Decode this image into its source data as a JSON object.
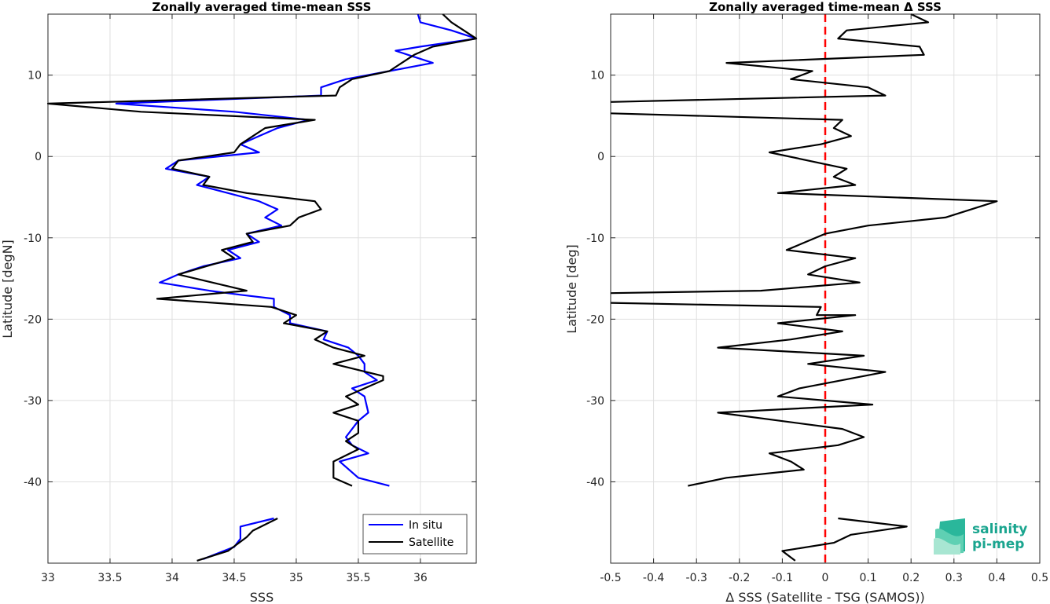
{
  "chart_data": [
    {
      "type": "line",
      "title": "Zonally averaged time-mean SSS",
      "xlabel": "SSS",
      "ylabel": "Latitude [degN]",
      "xlim": [
        33,
        36.45
      ],
      "ylim": [
        -50,
        17.5
      ],
      "xticks": [
        "33",
        "33.5",
        "34",
        "34.5",
        "35",
        "35.5",
        "36"
      ],
      "yticks": [
        "10",
        "0",
        "-10",
        "-20",
        "-30",
        "-40"
      ],
      "grid": true,
      "legend_position": "bottom-right",
      "series": [
        {
          "name": "In situ",
          "color": "#0000ff",
          "segments": [
            [
              [
                35.98,
                17.5
              ],
              [
                36.0,
                16.5
              ],
              [
                36.25,
                15.5
              ],
              [
                36.45,
                14.5
              ],
              [
                36.0,
                13.5
              ],
              [
                35.8,
                13.0
              ],
              [
                35.9,
                12.5
              ],
              [
                36.1,
                11.5
              ],
              [
                35.75,
                10.5
              ],
              [
                35.4,
                9.5
              ],
              [
                35.2,
                8.5
              ],
              [
                35.2,
                7.5
              ],
              [
                33.55,
                6.5
              ],
              [
                34.5,
                5.5
              ],
              [
                35.1,
                4.5
              ],
              [
                34.85,
                3.5
              ],
              [
                34.7,
                2.5
              ],
              [
                34.55,
                1.5
              ],
              [
                34.7,
                0.5
              ],
              [
                34.05,
                -0.5
              ],
              [
                33.95,
                -1.5
              ],
              [
                34.3,
                -2.5
              ],
              [
                34.2,
                -3.5
              ],
              [
                34.45,
                -4.5
              ],
              [
                34.7,
                -5.5
              ],
              [
                34.85,
                -6.5
              ],
              [
                34.75,
                -7.5
              ],
              [
                34.88,
                -8.5
              ],
              [
                34.6,
                -9.5
              ],
              [
                34.7,
                -10.5
              ],
              [
                34.45,
                -11.5
              ],
              [
                34.55,
                -12.5
              ],
              [
                34.25,
                -13.5
              ],
              [
                34.05,
                -14.5
              ],
              [
                33.9,
                -15.5
              ],
              [
                34.3,
                -16.5
              ],
              [
                34.55,
                -17.0
              ],
              [
                34.82,
                -17.5
              ],
              [
                34.82,
                -18.5
              ],
              [
                34.95,
                -19.5
              ],
              [
                34.95,
                -20.5
              ],
              [
                35.25,
                -21.5
              ],
              [
                35.22,
                -22.5
              ],
              [
                35.42,
                -23.5
              ],
              [
                35.5,
                -24.5
              ],
              [
                35.55,
                -25.5
              ],
              [
                35.55,
                -26.5
              ],
              [
                35.65,
                -27.5
              ],
              [
                35.45,
                -28.5
              ],
              [
                35.55,
                -29.5
              ],
              [
                35.58,
                -31.5
              ],
              [
                35.5,
                -32.5
              ],
              [
                35.4,
                -34.5
              ],
              [
                35.45,
                -35.5
              ],
              [
                35.58,
                -36.5
              ],
              [
                35.35,
                -37.5
              ],
              [
                35.5,
                -39.5
              ],
              [
                35.75,
                -40.5
              ]
            ],
            [
              [
                34.82,
                -44.5
              ],
              [
                34.55,
                -45.5
              ],
              [
                34.55,
                -47.0
              ],
              [
                34.5,
                -48.0
              ],
              [
                34.25,
                -49.5
              ]
            ]
          ]
        },
        {
          "name": "Satellite",
          "color": "#000000",
          "segments": [
            [
              [
                36.18,
                17.5
              ],
              [
                36.25,
                16.5
              ],
              [
                36.45,
                14.5
              ],
              [
                36.1,
                13.5
              ],
              [
                35.95,
                12.5
              ],
              [
                35.75,
                10.5
              ],
              [
                35.45,
                9.5
              ],
              [
                35.35,
                8.5
              ],
              [
                35.32,
                7.5
              ],
              [
                33.0,
                6.5
              ],
              [
                33.75,
                5.5
              ],
              [
                35.15,
                4.5
              ],
              [
                34.75,
                3.5
              ],
              [
                34.65,
                2.5
              ],
              [
                34.55,
                1.5
              ],
              [
                34.5,
                0.5
              ],
              [
                34.05,
                -0.5
              ],
              [
                34.0,
                -1.5
              ],
              [
                34.3,
                -2.5
              ],
              [
                34.25,
                -3.5
              ],
              [
                34.6,
                -4.5
              ],
              [
                35.15,
                -5.5
              ],
              [
                35.2,
                -6.5
              ],
              [
                35.02,
                -7.5
              ],
              [
                34.95,
                -8.5
              ],
              [
                34.6,
                -9.5
              ],
              [
                34.65,
                -10.5
              ],
              [
                34.4,
                -11.5
              ],
              [
                34.5,
                -12.5
              ],
              [
                34.05,
                -14.5
              ],
              [
                34.6,
                -16.5
              ],
              [
                33.88,
                -17.5
              ],
              [
                34.8,
                -18.5
              ],
              [
                35.0,
                -19.5
              ],
              [
                34.9,
                -20.5
              ],
              [
                35.25,
                -21.5
              ],
              [
                35.15,
                -22.5
              ],
              [
                35.3,
                -23.5
              ],
              [
                35.55,
                -24.5
              ],
              [
                35.3,
                -25.5
              ],
              [
                35.7,
                -27.0
              ],
              [
                35.7,
                -27.5
              ],
              [
                35.4,
                -29.5
              ],
              [
                35.5,
                -30.5
              ],
              [
                35.3,
                -31.5
              ],
              [
                35.5,
                -32.5
              ],
              [
                35.5,
                -34.0
              ],
              [
                35.4,
                -35.0
              ],
              [
                35.5,
                -36.0
              ],
              [
                35.3,
                -37.5
              ],
              [
                35.3,
                -39.5
              ],
              [
                35.45,
                -40.5
              ]
            ],
            [
              [
                34.85,
                -44.5
              ],
              [
                34.65,
                -46.0
              ],
              [
                34.6,
                -46.8
              ],
              [
                34.45,
                -48.5
              ],
              [
                34.2,
                -49.7
              ]
            ]
          ]
        }
      ]
    },
    {
      "type": "line",
      "title": "Zonally averaged time-mean Δ SSS",
      "xlabel": "Δ SSS (Satellite - TSG (SAMOS))",
      "ylabel": "Latitude [deg]",
      "xlim": [
        -0.5,
        0.5
      ],
      "ylim": [
        -50,
        17.5
      ],
      "xticks": [
        "-0.5",
        "-0.4",
        "-0.3",
        "-0.2",
        "-0.1",
        "0",
        "0.1",
        "0.2",
        "0.3",
        "0.4",
        "0.5"
      ],
      "yticks": [
        "10",
        "0",
        "-10",
        "-20",
        "-30",
        "-40"
      ],
      "grid": true,
      "reference_line": {
        "x": 0,
        "color": "#ff0000",
        "style": "dashed"
      },
      "series": [
        {
          "color": "#000000",
          "segments": [
            [
              [
                0.2,
                17.5
              ],
              [
                0.24,
                16.5
              ],
              [
                0.05,
                15.5
              ],
              [
                0.03,
                14.5
              ],
              [
                0.22,
                13.5
              ],
              [
                0.23,
                12.5
              ],
              [
                -0.23,
                11.5
              ],
              [
                -0.03,
                10.5
              ],
              [
                -0.08,
                9.5
              ],
              [
                0.1,
                8.5
              ],
              [
                0.14,
                7.5
              ],
              [
                -0.5,
                6.7
              ]
            ],
            [
              [
                -0.5,
                5.3
              ],
              [
                0.04,
                4.5
              ],
              [
                0.02,
                3.5
              ],
              [
                0.06,
                2.5
              ],
              [
                -0.01,
                1.5
              ],
              [
                -0.13,
                0.5
              ],
              [
                0.05,
                -1.5
              ],
              [
                0.02,
                -2.5
              ],
              [
                0.07,
                -3.5
              ],
              [
                -0.11,
                -4.5
              ],
              [
                0.4,
                -5.5
              ],
              [
                0.28,
                -7.5
              ],
              [
                0.1,
                -8.5
              ],
              [
                0.0,
                -9.5
              ],
              [
                -0.09,
                -11.5
              ],
              [
                0.07,
                -12.5
              ],
              [
                0.0,
                -13.5
              ],
              [
                -0.04,
                -14.5
              ],
              [
                0.08,
                -15.5
              ],
              [
                -0.15,
                -16.5
              ],
              [
                -0.5,
                -16.8
              ]
            ],
            [
              [
                -0.5,
                -18.0
              ],
              [
                -0.01,
                -18.5
              ],
              [
                -0.02,
                -19.5
              ],
              [
                0.07,
                -19.5
              ],
              [
                -0.11,
                -20.5
              ],
              [
                0.04,
                -21.5
              ],
              [
                -0.08,
                -22.5
              ],
              [
                -0.25,
                -23.5
              ],
              [
                0.09,
                -24.5
              ],
              [
                -0.04,
                -25.5
              ],
              [
                0.14,
                -26.5
              ],
              [
                -0.06,
                -28.5
              ],
              [
                -0.11,
                -29.5
              ],
              [
                0.11,
                -30.5
              ],
              [
                -0.25,
                -31.5
              ],
              [
                0.04,
                -33.5
              ],
              [
                0.09,
                -34.5
              ],
              [
                0.03,
                -35.5
              ],
              [
                -0.13,
                -36.5
              ],
              [
                -0.08,
                -37.5
              ],
              [
                -0.05,
                -38.5
              ],
              [
                -0.23,
                -39.5
              ],
              [
                -0.32,
                -40.5
              ]
            ],
            [
              [
                0.03,
                -44.5
              ],
              [
                0.19,
                -45.5
              ],
              [
                0.06,
                -46.5
              ],
              [
                0.02,
                -47.5
              ],
              [
                -0.1,
                -48.5
              ],
              [
                -0.07,
                -49.7
              ]
            ]
          ]
        }
      ]
    }
  ],
  "legend": {
    "in_situ_label": "In situ",
    "satellite_label": "Satellite"
  },
  "logo": {
    "line1": "salinity",
    "line2": "pi-mep"
  }
}
